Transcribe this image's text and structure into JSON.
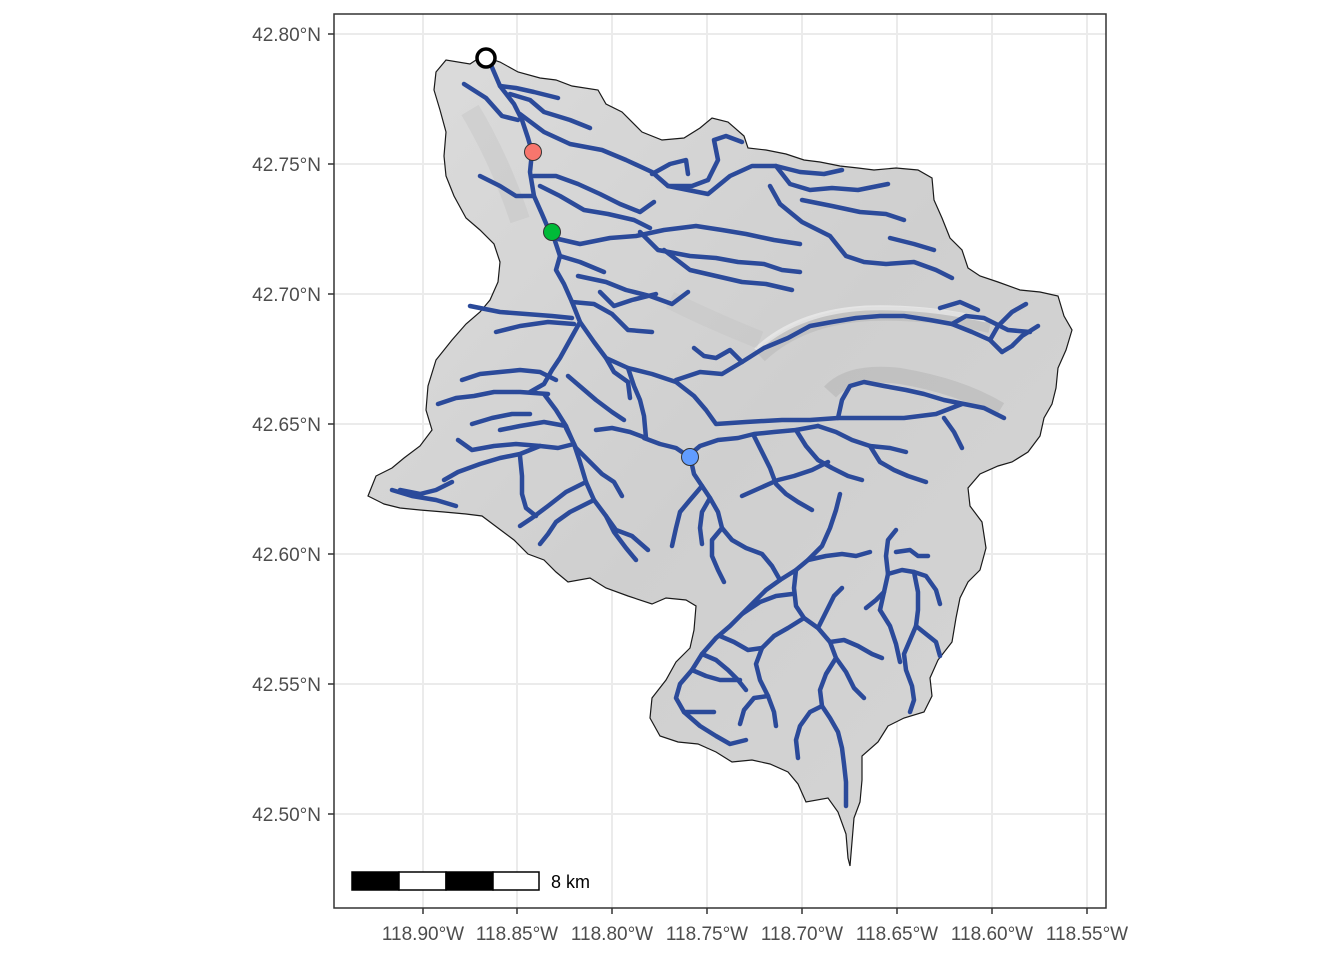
{
  "map": {
    "y_ticks": [
      "42.80°N",
      "42.75°N",
      "42.70°N",
      "42.65°N",
      "42.60°N",
      "42.55°N",
      "42.50°N"
    ],
    "x_ticks": [
      "118.90°W",
      "118.85°W",
      "118.80°W",
      "118.75°W",
      "118.70°W",
      "118.65°W",
      "118.60°W",
      "118.55°W"
    ],
    "scale_bar": {
      "label": "8 km",
      "length_km": 8
    },
    "colors": {
      "streams": "#2b4a9a",
      "basin_fill": "#d2d2d2",
      "grid": "#ebebeb",
      "panel_border": "#333333",
      "point_red": "#f8766d",
      "point_green": "#00ba38",
      "point_blue": "#619cff",
      "outlet": "#ffffff"
    },
    "points": [
      {
        "name": "outlet",
        "lon": -118.868,
        "lat": 42.791
      },
      {
        "name": "site-red",
        "lon": -118.843,
        "lat": 42.755
      },
      {
        "name": "site-green",
        "lon": -118.833,
        "lat": 42.724
      },
      {
        "name": "site-blue",
        "lon": -118.761,
        "lat": 42.637
      }
    ]
  }
}
